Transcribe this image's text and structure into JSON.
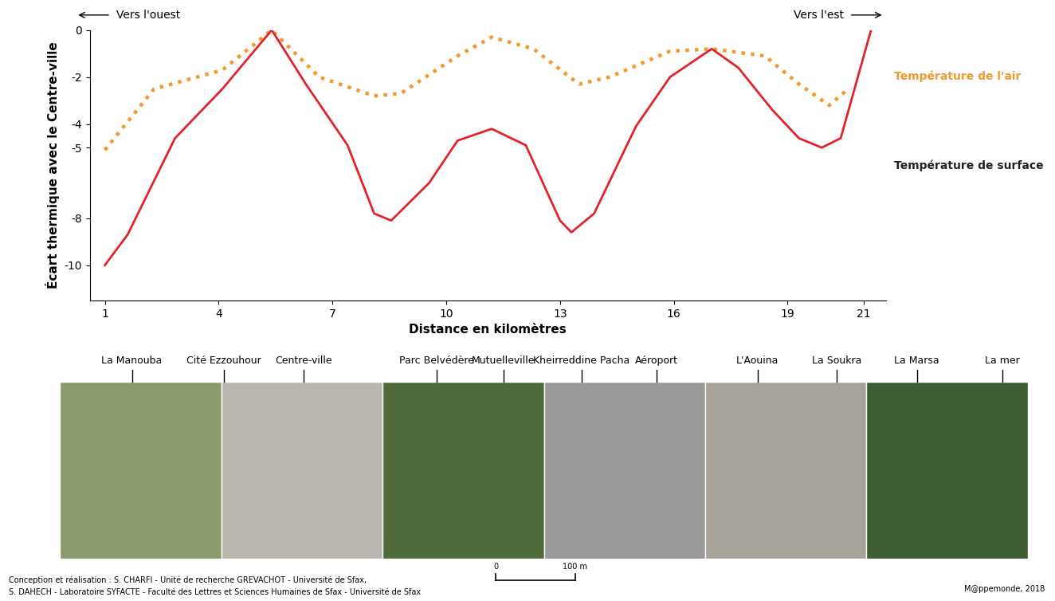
{
  "chart_data": {
    "type": "line",
    "xlabel": "Distance en kilomètres",
    "ylabel": "Écart thermique avec le Centre-ville",
    "xlim": [
      0.6,
      21.6
    ],
    "xticks": [
      1,
      4,
      7,
      10,
      13,
      16,
      19,
      21
    ],
    "ylim": [
      -11.5,
      0
    ],
    "yticks": [
      0,
      -2,
      -4,
      -5,
      -8,
      -10
    ],
    "annotations": [
      "Vers l'ouest",
      "Vers l'est"
    ],
    "series": [
      {
        "name": "Température de l'air",
        "color": "#f39a2e",
        "line_style": "dotted",
        "x": [
          1.0,
          2.3,
          4.1,
          5.4,
          6.65,
          8.1,
          8.8,
          10.3,
          11.2,
          12.3,
          13.5,
          14.3,
          15.9,
          17.0,
          18.4,
          19.3,
          20.1,
          20.6
        ],
        "values": [
          -5.1,
          -2.5,
          -1.7,
          0,
          -2.0,
          -2.8,
          -2.7,
          -1.1,
          -0.3,
          -0.8,
          -2.3,
          -2.0,
          -0.9,
          -0.8,
          -1.1,
          -2.3,
          -3.2,
          -2.5
        ]
      },
      {
        "name": "Température de surface",
        "color": "#e0242a",
        "line_style": "solid",
        "x": [
          1.0,
          1.6,
          2.85,
          4.1,
          5.4,
          6.3,
          7.4,
          8.1,
          8.55,
          9.55,
          10.3,
          11.2,
          12.1,
          13.0,
          13.3,
          13.9,
          15.0,
          15.9,
          17.0,
          17.7,
          18.6,
          19.3,
          19.9,
          20.4,
          21.2
        ],
        "values": [
          -10,
          -8.7,
          -4.6,
          -2.5,
          0,
          -2.3,
          -4.9,
          -7.8,
          -8.1,
          -6.5,
          -4.7,
          -4.2,
          -4.9,
          -8.1,
          -8.6,
          -7.8,
          -4.1,
          -2.0,
          -0.8,
          -1.6,
          -3.4,
          -4.6,
          -5.0,
          -4.6,
          0
        ]
      }
    ]
  },
  "places": [
    "La Manouba",
    "Cité Ezzouhour",
    "Centre-ville",
    "Parc Belvédère",
    "Mutuelleville",
    "Kheirreddine Pacha",
    "Aéroport",
    "L'Aouina",
    "La Soukra",
    "La Marsa",
    "La mer"
  ],
  "scale_bar": [
    "0",
    "100 m"
  ],
  "credits": [
    "Conception et réalisation : S. CHARFI - Unité de recherche GREVACHOT - Université de Sfax,",
    "S. DAHECH - Laboratoire SYFACTE - Faculté des Lettres et Sciences Humaines de Sfax - Université de Sfax"
  ],
  "source": "M@ppemonde, 2018"
}
